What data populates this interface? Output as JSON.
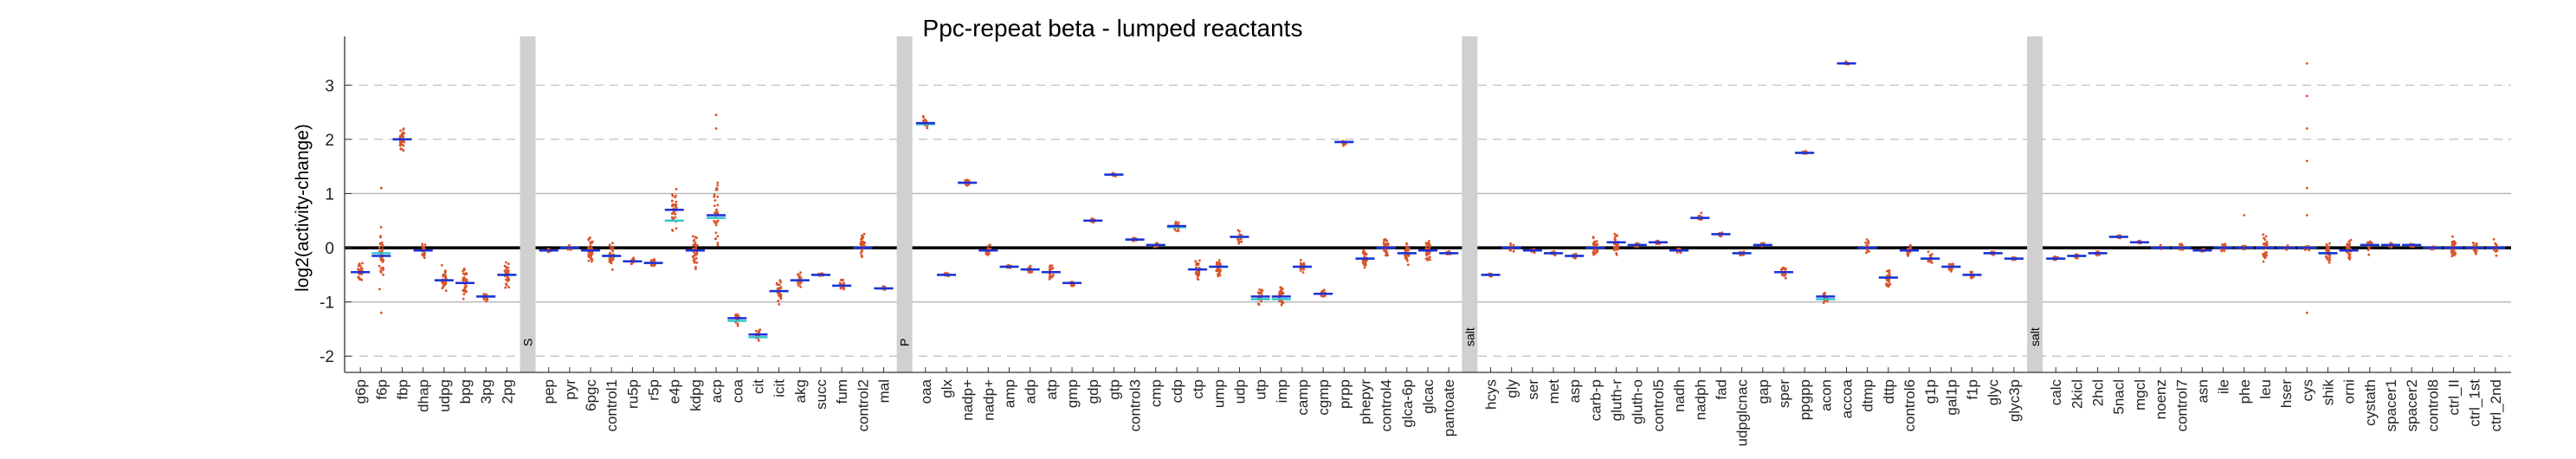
{
  "chart_data": {
    "type": "scatter",
    "title": "Ppc-repeat beta - lumped reactants",
    "ylabel": "log2(activity-change)",
    "xlabel": "",
    "ylim": [
      -2.3,
      3.9
    ],
    "yticks": [
      -2,
      -1,
      0,
      1,
      2,
      3
    ],
    "grid": "dashed horizontal at ±2 and ±3, solid gray at ±1, bold black at 0",
    "colors": {
      "points": "#d9542a",
      "mean": "#1f2fd6",
      "median": "#32c6c8",
      "separator": "#d0d0d0"
    },
    "separators": [
      {
        "after": "2pg",
        "label": "S"
      },
      {
        "after": "mal",
        "label": "P"
      },
      {
        "after": "pantoate",
        "label": "salt"
      },
      {
        "after": "glyc3p",
        "label": "salt"
      }
    ],
    "categories": [
      "g6p",
      "f6p",
      "fbp",
      "dhap",
      "udpg",
      "bpg",
      "3pg",
      "2pg",
      "pep",
      "pyr",
      "6pgc",
      "control1",
      "ru5p",
      "r5p",
      "e4p",
      "kdpg",
      "acp",
      "coa",
      "cit",
      "icit",
      "akg",
      "succ",
      "fum",
      "control2",
      "mal",
      "oaa",
      "glx",
      "nadp+",
      "nadp+",
      "amp",
      "adp",
      "atp",
      "gmp",
      "gdp",
      "gtp",
      "control3",
      "cmp",
      "cdp",
      "ctp",
      "ump",
      "udp",
      "utp",
      "imp",
      "camp",
      "cgmp",
      "prpp",
      "phepyr",
      "control4",
      "glca-6p",
      "glcac",
      "pantoate",
      "hcys",
      "gly",
      "ser",
      "met",
      "asp",
      "carb-p",
      "gluth-r",
      "gluth-o",
      "control5",
      "nadh",
      "nadph",
      "fad",
      "udpglcnac",
      "gap",
      "sper",
      "ppgpp",
      "acon",
      "accoa",
      "dtmp",
      "dttp",
      "control6",
      "g1p",
      "gal1p",
      "f1p",
      "glyc",
      "glyc3p",
      "calc",
      "2kicl",
      "2hcl",
      "5nacl",
      "mgcl",
      "noenz",
      "control7",
      "asn",
      "ile",
      "phe",
      "leu",
      "hser",
      "cys",
      "shik",
      "orni",
      "cystath",
      "spacer1",
      "spacer2",
      "control8",
      "ctrl_II",
      "ctrl_1^st",
      "ctrl_2^nd"
    ],
    "tick_labels": [
      "g6p",
      "f6p",
      "fbp",
      "dhap",
      "udpg",
      "bpg",
      "3pg",
      "2pg",
      "pep",
      "pyr",
      "6pgc",
      "control1",
      "ru5p",
      "r5p",
      "e4p",
      "kdpg",
      "acp",
      "coa",
      "cit",
      "icit",
      "akg",
      "succ",
      "fum",
      "control2",
      "mal",
      "oaa",
      "glx",
      "nadp+",
      "nadp+",
      "amp",
      "adp",
      "atp",
      "gmp",
      "gdp",
      "gtp",
      "control3",
      "cmp",
      "cdp",
      "ctp",
      "ump",
      "udp",
      "utp",
      "imp",
      "camp",
      "cgmp",
      "prpp",
      "phepyr",
      "control4",
      "glca-6p",
      "glcac",
      "pantoate",
      "hcys",
      "gly",
      "ser",
      "met",
      "asp",
      "carb-p",
      "gluth-r",
      "gluth-o",
      "control5",
      "nadh",
      "nadph",
      "fad",
      "udpglcnac",
      "gap",
      "sper",
      "ppgpp",
      "acon",
      "accoa",
      "dtmp",
      "dttp",
      "control6",
      "g1p",
      "gal1p",
      "f1p",
      "glyc",
      "glyc3p",
      "calc",
      "2kicl",
      "2hcl",
      "5nacl",
      "mgcl",
      "noenz",
      "control7",
      "asn",
      "ile",
      "phe",
      "leu",
      "hser",
      "cys",
      "shik",
      "orni",
      "cystath",
      "spacer1",
      "spacer2",
      "control8",
      "ctrl_II",
      "ctrl_1st",
      "ctrl_2nd"
    ],
    "means": [
      -0.45,
      -0.15,
      2.0,
      -0.05,
      -0.6,
      -0.65,
      -0.9,
      -0.5,
      -0.05,
      0.0,
      -0.05,
      -0.15,
      -0.25,
      -0.28,
      0.7,
      -0.05,
      0.6,
      -1.3,
      -1.6,
      -0.8,
      -0.6,
      -0.5,
      -0.7,
      0.0,
      -0.75,
      2.3,
      -0.5,
      1.2,
      -0.05,
      -0.35,
      -0.4,
      -0.45,
      -0.65,
      0.5,
      1.35,
      0.15,
      0.05,
      0.4,
      -0.4,
      -0.35,
      0.2,
      -0.9,
      -0.9,
      -0.35,
      -0.85,
      1.95,
      -0.2,
      0.0,
      -0.1,
      -0.05,
      -0.1,
      -0.5,
      0.0,
      -0.05,
      -0.1,
      -0.15,
      0.0,
      0.1,
      0.05,
      0.1,
      -0.05,
      0.55,
      0.25,
      -0.1,
      0.05,
      -0.45,
      1.75,
      -0.9,
      3.4,
      0.0,
      -0.55,
      -0.05,
      -0.2,
      -0.35,
      -0.5,
      -0.1,
      -0.2,
      -0.2,
      -0.15,
      -0.1,
      0.2,
      0.1,
      0.0,
      0.0,
      -0.05,
      0.0,
      0.0,
      0.0,
      0.0,
      0.0,
      -0.1,
      -0.05,
      0.05,
      0.05,
      0.05,
      0.0,
      0.0,
      0.0,
      0.0
    ],
    "medians": [
      -0.45,
      -0.1,
      2.0,
      -0.05,
      -0.6,
      -0.65,
      -0.9,
      -0.5,
      -0.05,
      0.0,
      -0.05,
      -0.15,
      -0.25,
      -0.28,
      0.5,
      -0.05,
      0.55,
      -1.35,
      -1.65,
      -0.8,
      -0.6,
      -0.5,
      -0.7,
      0.0,
      -0.75,
      2.28,
      -0.5,
      1.2,
      -0.05,
      -0.35,
      -0.4,
      -0.45,
      -0.65,
      0.5,
      1.35,
      0.15,
      0.05,
      0.38,
      -0.4,
      -0.35,
      0.2,
      -0.95,
      -0.95,
      -0.35,
      -0.85,
      1.95,
      -0.2,
      0.0,
      -0.1,
      -0.05,
      -0.1,
      -0.5,
      0.0,
      -0.05,
      -0.1,
      -0.15,
      0.0,
      0.1,
      0.05,
      0.1,
      -0.05,
      0.55,
      0.25,
      -0.1,
      0.05,
      -0.45,
      1.75,
      -0.95,
      3.4,
      0.0,
      -0.55,
      -0.05,
      -0.2,
      -0.35,
      -0.5,
      -0.1,
      -0.2,
      -0.2,
      -0.15,
      -0.1,
      0.2,
      0.1,
      0.0,
      0.0,
      -0.05,
      0.0,
      0.0,
      0.0,
      0.0,
      0.0,
      -0.1,
      -0.05,
      0.05,
      0.05,
      0.05,
      0.0,
      0.0,
      0.0,
      0.0
    ],
    "spreads": [
      0.3,
      0.8,
      0.3,
      0.2,
      0.3,
      0.4,
      0.1,
      0.3,
      0.05,
      0.05,
      0.35,
      0.3,
      0.1,
      0.1,
      0.55,
      0.5,
      0.9,
      0.2,
      0.2,
      0.3,
      0.2,
      0.05,
      0.2,
      0.35,
      0.05,
      0.15,
      0.05,
      0.1,
      0.15,
      0.05,
      0.1,
      0.2,
      0.1,
      0.05,
      0.05,
      0.05,
      0.05,
      0.15,
      0.3,
      0.25,
      0.15,
      0.2,
      0.25,
      0.15,
      0.1,
      0.1,
      0.25,
      0.3,
      0.3,
      0.3,
      0.05,
      0.05,
      0.15,
      0.05,
      0.05,
      0.05,
      0.3,
      0.3,
      0.05,
      0.05,
      0.05,
      0.1,
      0.05,
      0.05,
      0.05,
      0.2,
      0.05,
      0.2,
      0.05,
      0.2,
      0.25,
      0.15,
      0.15,
      0.15,
      0.1,
      0.05,
      0.05,
      0.05,
      0.05,
      0.05,
      0.05,
      0.05,
      0.05,
      0.1,
      0.05,
      0.15,
      0.05,
      0.35,
      0.05,
      0.1,
      0.3,
      0.25,
      0.2,
      0.05,
      0.05,
      0.05,
      0.25,
      0.2,
      0.2
    ],
    "outliers": [
      {
        "category": "f6p",
        "values": [
          1.1,
          -1.2
        ]
      },
      {
        "category": "acp",
        "values": [
          2.45,
          2.2
        ]
      },
      {
        "category": "cys",
        "values": [
          3.4,
          2.8,
          2.2,
          1.6,
          1.1,
          0.6,
          -1.2
        ]
      },
      {
        "category": "phe",
        "values": [
          0.6
        ]
      }
    ]
  }
}
